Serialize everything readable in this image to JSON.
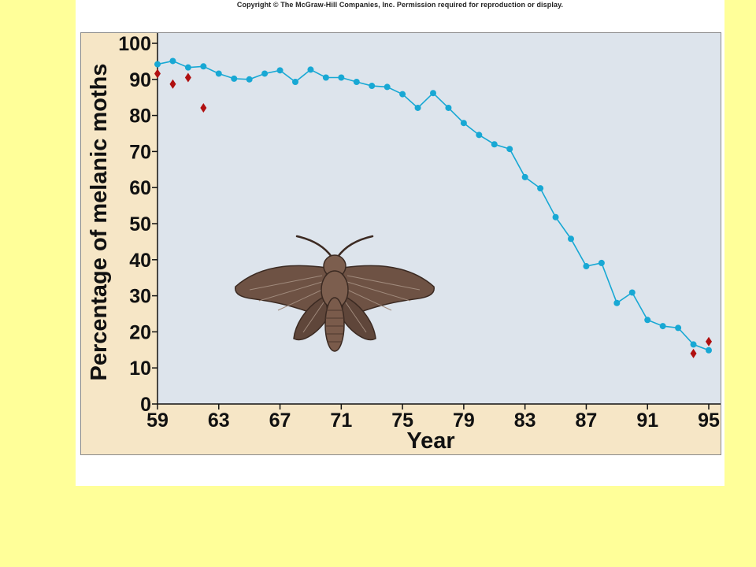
{
  "copyright": "Copyright © The McGraw-Hill Companies, Inc. Permission required for reproduction or display.",
  "colors": {
    "background": "#ffff99",
    "panel": "#f6e6c6",
    "plot_area": "#dde4ec",
    "series_line": "#18a8d4",
    "diamond": "#b01010",
    "moth_wing": "#6e5244",
    "moth_body": "#7c5e4e"
  },
  "illustration": {
    "name": "moth-illustration",
    "icon": "melanic-moth-icon"
  },
  "chart_data": {
    "type": "line",
    "title": "",
    "xlabel": "Year",
    "ylabel": "Percentage of melanic moths",
    "xlim": [
      59,
      95
    ],
    "ylim": [
      0,
      100
    ],
    "xticks": [
      {
        "value": 59,
        "label": "59"
      },
      {
        "value": 63,
        "label": "63"
      },
      {
        "value": 67,
        "label": "67"
      },
      {
        "value": 71,
        "label": "71"
      },
      {
        "value": 75,
        "label": "75"
      },
      {
        "value": 79,
        "label": "79"
      },
      {
        "value": 83,
        "label": "83"
      },
      {
        "value": 87,
        "label": "87"
      },
      {
        "value": 91,
        "label": "91"
      },
      {
        "value": 95,
        "label": "95"
      }
    ],
    "yticks": [
      {
        "value": 0,
        "label": "0"
      },
      {
        "value": 10,
        "label": "10"
      },
      {
        "value": 20,
        "label": "20"
      },
      {
        "value": 30,
        "label": "30"
      },
      {
        "value": 40,
        "label": "40"
      },
      {
        "value": 50,
        "label": "50"
      },
      {
        "value": 60,
        "label": "60"
      },
      {
        "value": 70,
        "label": "70"
      },
      {
        "value": 80,
        "label": "80"
      },
      {
        "value": 90,
        "label": "90"
      },
      {
        "value": 100,
        "label": "100"
      }
    ],
    "grid": false,
    "series": [
      {
        "marker": "circle",
        "line": true,
        "points": [
          [
            59,
            94.2
          ],
          [
            60,
            95.1
          ],
          [
            61,
            93.3
          ],
          [
            62,
            93.6
          ],
          [
            63,
            91.6
          ],
          [
            64,
            90.2
          ],
          [
            65,
            90.0
          ],
          [
            66,
            91.6
          ],
          [
            67,
            92.5
          ],
          [
            68,
            89.3
          ],
          [
            69,
            92.7
          ],
          [
            70,
            90.5
          ],
          [
            71,
            90.5
          ],
          [
            72,
            89.3
          ],
          [
            73,
            88.2
          ],
          [
            74,
            87.9
          ],
          [
            75,
            85.9
          ],
          [
            76,
            82.1
          ],
          [
            77,
            86.2
          ],
          [
            78,
            82.1
          ],
          [
            79,
            77.9
          ],
          [
            80,
            74.6
          ],
          [
            81,
            72.0
          ],
          [
            82,
            70.7
          ],
          [
            83,
            62.9
          ],
          [
            84,
            59.8
          ],
          [
            85,
            51.8
          ],
          [
            86,
            45.8
          ],
          [
            87,
            38.2
          ],
          [
            88,
            39.1
          ],
          [
            89,
            28.0
          ],
          [
            90,
            30.9
          ],
          [
            91,
            23.3
          ],
          [
            92,
            21.6
          ],
          [
            93,
            21.1
          ],
          [
            94,
            16.5
          ],
          [
            95,
            14.9
          ]
        ]
      },
      {
        "marker": "diamond",
        "line": false,
        "points": [
          [
            59,
            91.6
          ],
          [
            60,
            88.7
          ],
          [
            61,
            90.5
          ],
          [
            62,
            82.1
          ],
          [
            94,
            14.0
          ],
          [
            95,
            17.3
          ]
        ]
      }
    ]
  }
}
